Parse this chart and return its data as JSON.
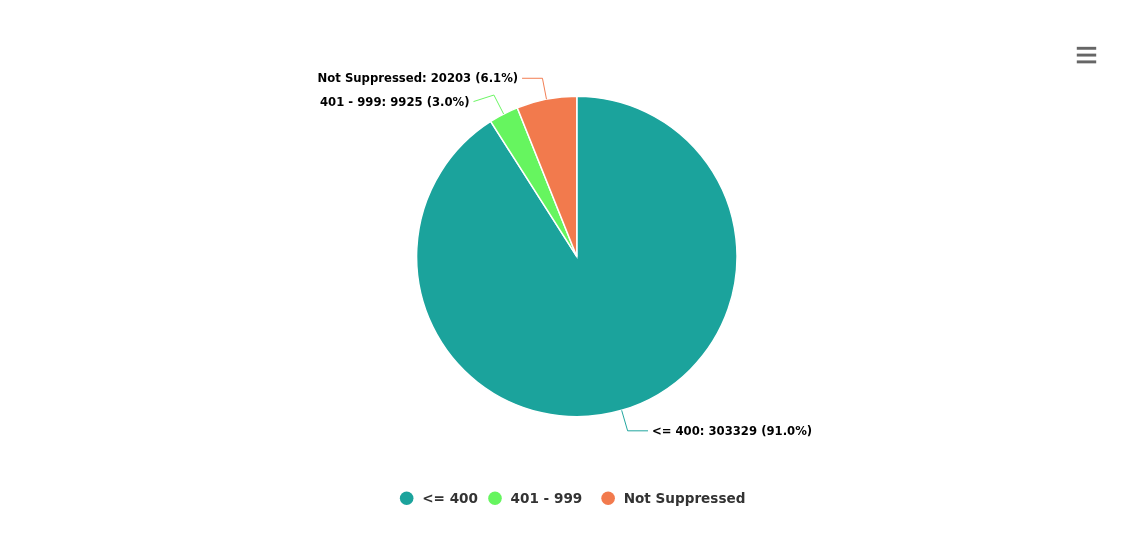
{
  "chart_data": {
    "type": "pie",
    "categories": [
      "<= 400",
      "401 - 999",
      "Not Suppressed"
    ],
    "values": [
      303329,
      9925,
      20203
    ],
    "colors": [
      "#1ba39c",
      "#66f55f",
      "#f27a4d"
    ],
    "value_labels": [
      ": 303329 (91.0%)",
      ": 9925 (3.0%)",
      ": 20203 (6.1%)"
    ],
    "legend": "bottom"
  }
}
